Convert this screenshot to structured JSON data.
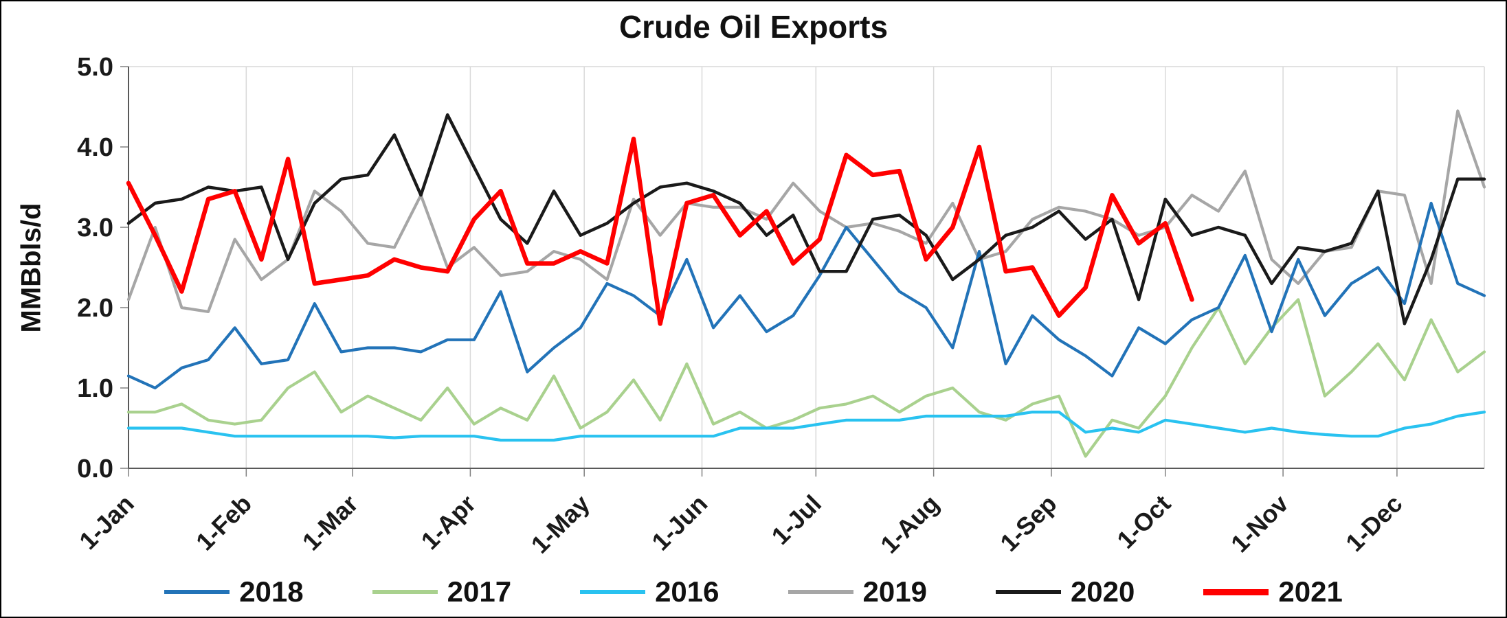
{
  "title": "Crude Oil Exports",
  "chart_data": {
    "type": "line",
    "title": "Crude Oil Exports",
    "ylabel": "MMBbls/d",
    "ylim": [
      0,
      5
    ],
    "y_ticks": [
      0,
      1,
      2,
      3,
      4,
      5
    ],
    "y_tick_format_decimals": 1,
    "x_days_span": 357,
    "points_interval_days": 7,
    "grid": "vertical-month-lines",
    "legend_position": "bottom",
    "x_ticks": [
      {
        "label": "1-Jan",
        "day": 0
      },
      {
        "label": "1-Feb",
        "day": 31
      },
      {
        "label": "1-Mar",
        "day": 59
      },
      {
        "label": "1-Apr",
        "day": 90
      },
      {
        "label": "1-May",
        "day": 120
      },
      {
        "label": "1-Jun",
        "day": 151
      },
      {
        "label": "1-Jul",
        "day": 181
      },
      {
        "label": "1-Aug",
        "day": 212
      },
      {
        "label": "1-Sep",
        "day": 243
      },
      {
        "label": "1-Oct",
        "day": 273
      },
      {
        "label": "1-Nov",
        "day": 304
      },
      {
        "label": "1-Dec",
        "day": 334
      }
    ],
    "series": [
      {
        "name": "2018",
        "color": "#2273B8",
        "values": [
          1.15,
          1.0,
          1.25,
          1.35,
          1.75,
          1.3,
          1.35,
          2.05,
          1.45,
          1.5,
          1.5,
          1.45,
          1.6,
          1.6,
          2.2,
          1.2,
          1.5,
          1.75,
          2.3,
          2.15,
          1.9,
          2.6,
          1.75,
          2.15,
          1.7,
          1.9,
          2.4,
          3.0,
          2.6,
          2.2,
          2.0,
          1.5,
          2.7,
          1.3,
          1.9,
          1.6,
          1.4,
          1.15,
          1.75,
          1.55,
          1.85,
          2.0,
          2.65,
          1.7,
          2.6,
          1.9,
          2.3,
          2.5,
          2.05,
          3.3,
          2.3,
          2.15
        ]
      },
      {
        "name": "2017",
        "color": "#A9D18E",
        "values": [
          0.7,
          0.7,
          0.8,
          0.6,
          0.55,
          0.6,
          1.0,
          1.2,
          0.7,
          0.9,
          0.75,
          0.6,
          1.0,
          0.55,
          0.75,
          0.6,
          1.15,
          0.5,
          0.7,
          1.1,
          0.6,
          1.3,
          0.55,
          0.7,
          0.5,
          0.6,
          0.75,
          0.8,
          0.9,
          0.7,
          0.9,
          1.0,
          0.7,
          0.6,
          0.8,
          0.9,
          0.15,
          0.6,
          0.5,
          0.9,
          1.5,
          2.0,
          1.3,
          1.75,
          2.1,
          0.9,
          1.2,
          1.55,
          1.1,
          1.85,
          1.2,
          1.45
        ]
      },
      {
        "name": "2016",
        "color": "#29C2F0",
        "values": [
          0.5,
          0.5,
          0.5,
          0.45,
          0.4,
          0.4,
          0.4,
          0.4,
          0.4,
          0.4,
          0.38,
          0.4,
          0.4,
          0.4,
          0.35,
          0.35,
          0.35,
          0.4,
          0.4,
          0.4,
          0.4,
          0.4,
          0.4,
          0.5,
          0.5,
          0.5,
          0.55,
          0.6,
          0.6,
          0.6,
          0.65,
          0.65,
          0.65,
          0.65,
          0.7,
          0.7,
          0.45,
          0.5,
          0.45,
          0.6,
          0.55,
          0.5,
          0.45,
          0.5,
          0.45,
          0.42,
          0.4,
          0.4,
          0.5,
          0.55,
          0.65,
          0.7
        ]
      },
      {
        "name": "2019",
        "color": "#A6A6A6",
        "values": [
          2.1,
          3.0,
          2.0,
          1.95,
          2.85,
          2.35,
          2.6,
          3.45,
          3.2,
          2.8,
          2.75,
          3.4,
          2.5,
          2.75,
          2.4,
          2.45,
          2.7,
          2.6,
          2.35,
          3.35,
          2.9,
          3.3,
          3.25,
          3.25,
          3.1,
          3.55,
          3.2,
          3.0,
          3.05,
          2.95,
          2.8,
          3.3,
          2.6,
          2.7,
          3.1,
          3.25,
          3.2,
          3.1,
          2.9,
          3.0,
          3.4,
          3.2,
          3.7,
          2.6,
          2.3,
          2.7,
          2.75,
          3.45,
          3.4,
          2.3,
          4.45,
          3.5
        ]
      },
      {
        "name": "2020",
        "color": "#1A1A1A",
        "values": [
          3.05,
          3.3,
          3.35,
          3.5,
          3.45,
          3.5,
          2.6,
          3.3,
          3.6,
          3.65,
          4.15,
          3.4,
          4.4,
          3.75,
          3.1,
          2.8,
          3.45,
          2.9,
          3.05,
          3.3,
          3.5,
          3.55,
          3.45,
          3.3,
          2.9,
          3.15,
          2.45,
          2.45,
          3.1,
          3.15,
          2.9,
          2.35,
          2.6,
          2.9,
          3.0,
          3.2,
          2.85,
          3.1,
          2.1,
          3.35,
          2.9,
          3.0,
          2.9,
          2.3,
          2.75,
          2.7,
          2.8,
          3.45,
          1.8,
          2.6,
          3.6,
          3.6
        ]
      },
      {
        "name": "2021",
        "color": "#FF0000",
        "emphasis": true,
        "values": [
          3.55,
          2.9,
          2.2,
          3.35,
          3.45,
          2.6,
          3.85,
          2.3,
          2.35,
          2.4,
          2.6,
          2.5,
          2.45,
          3.1,
          3.45,
          2.55,
          2.55,
          2.7,
          2.55,
          4.1,
          1.8,
          3.3,
          3.4,
          2.9,
          3.2,
          2.55,
          2.85,
          3.9,
          3.65,
          3.7,
          2.6,
          3.0,
          4.0,
          2.45,
          2.5,
          1.9,
          2.25,
          3.4,
          2.8,
          3.05,
          2.1
        ]
      }
    ]
  }
}
